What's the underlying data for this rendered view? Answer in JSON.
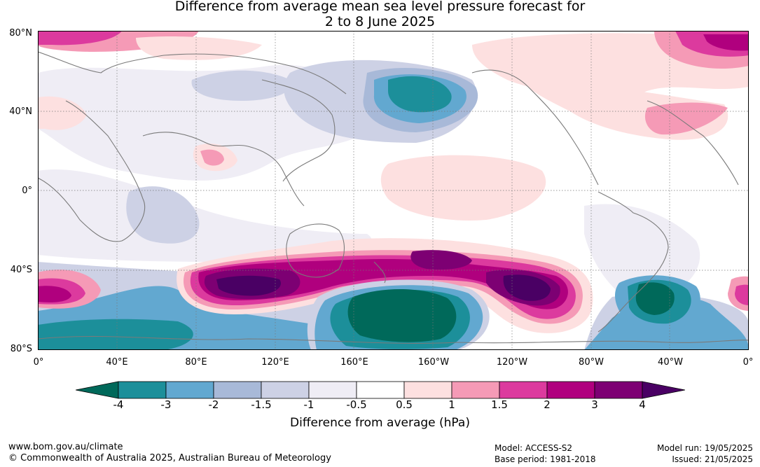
{
  "title": {
    "line1": "Difference from average mean sea level pressure forecast for",
    "line2": "2 to 8 June 2025"
  },
  "map": {
    "lat_labels": [
      "80°N",
      "40°N",
      "0°",
      "40°S",
      "80°S"
    ],
    "lon_labels": [
      "0°",
      "40°E",
      "80°E",
      "120°E",
      "160°E",
      "160°W",
      "120°W",
      "80°W",
      "40°W",
      "0°"
    ]
  },
  "colorbar": {
    "title": "Difference from average (hPa)",
    "ticks": [
      "-4",
      "-3",
      "-2",
      "-1.5",
      "-1",
      "-0.5",
      "0.5",
      "1",
      "1.5",
      "2",
      "3",
      "4"
    ],
    "colors": [
      "#00695a",
      "#1c8f9a",
      "#62a8d0",
      "#a8b9d8",
      "#cdd1e5",
      "#efedf5",
      "#ffffff",
      "#fde0e0",
      "#f59ab6",
      "#dc3a9e",
      "#b0007e",
      "#7d0073",
      "#4a0064"
    ]
  },
  "footer": {
    "url": "www.bom.gov.au/climate",
    "copyright": "© Commonwealth of Australia 2025, Australian Bureau of Meteorology",
    "model": "Model: ACCESS-S2",
    "base_period": "Base period: 1981-2018",
    "model_run": "Model run: 19/05/2025",
    "issued": "Issued: 21/05/2025"
  }
}
